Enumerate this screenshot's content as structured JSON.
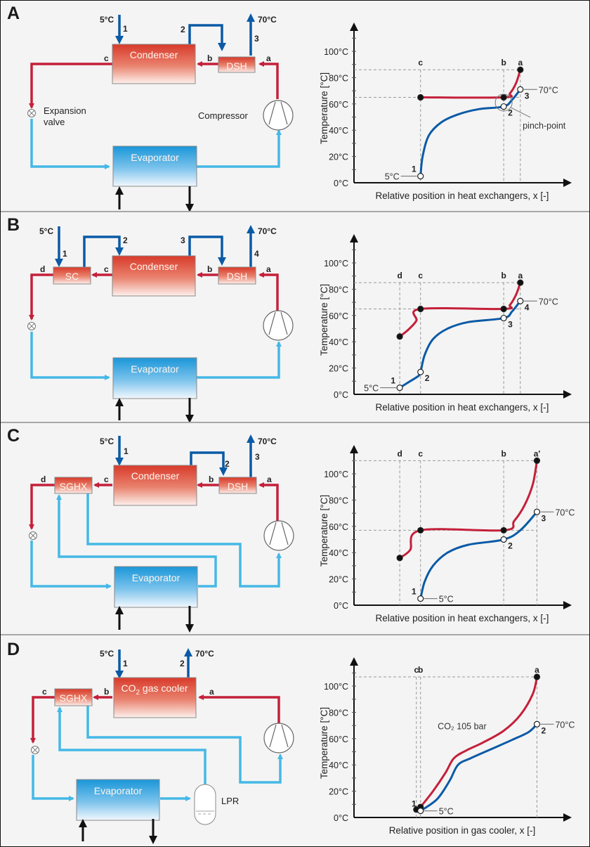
{
  "colors": {
    "hot_refrigerant": "#c4203a",
    "cold_refrigerant": "#45b8e6",
    "water": "#0a5aa6",
    "external": "#111111",
    "hx_red_top": "#d83a2a",
    "hx_red_bottom": "#fdf0ec",
    "evap_blue_top": "#1a96d8",
    "evap_blue_bottom": "#f2f8fd",
    "panel_bg": "#f4f4f4",
    "grid_dash": "#9a9a9a"
  },
  "panels": [
    {
      "id": "A",
      "letter": "A",
      "diagram": {
        "water_in_temp": "5°C",
        "water_out_temp": "70°C",
        "water_points": [
          "1",
          "2",
          "3"
        ],
        "refrigerant_points": [
          "a",
          "b",
          "c"
        ],
        "components": {
          "main_hx": "Condenser",
          "dsh": "DSH",
          "evaporator": "Evaporator",
          "expansion_valve": "Expansion\nvalve",
          "compressor": "Compressor"
        }
      },
      "chart_data": {
        "type": "line",
        "title": "",
        "xlabel": "Relative position in heat exchangers, x [-]",
        "ylabel": "Temperature [°C]",
        "ylim": [
          0,
          115
        ],
        "yticks": [
          "0°C",
          "20°C",
          "40°C",
          "60°C",
          "80°C",
          "100°C"
        ],
        "ytick_values": [
          0,
          20,
          40,
          60,
          80,
          100
        ],
        "grid": false,
        "xlim": [
          0,
          1
        ],
        "x_markers": [
          {
            "label": "c",
            "x": 0.32
          },
          {
            "label": "b",
            "x": 0.72
          },
          {
            "label": "a",
            "x": 0.8
          }
        ],
        "series": [
          {
            "name": "refrigerant",
            "color": "hot",
            "points": [
              [
                0.32,
                65
              ],
              [
                0.72,
                65
              ],
              [
                0.75,
                68
              ],
              [
                0.78,
                76
              ],
              [
                0.8,
                86
              ]
            ]
          },
          {
            "name": "water",
            "color": "water",
            "points": [
              [
                0.32,
                5
              ],
              [
                0.33,
                20
              ],
              [
                0.36,
                36
              ],
              [
                0.42,
                46
              ],
              [
                0.5,
                52
              ],
              [
                0.6,
                56
              ],
              [
                0.72,
                58
              ],
              [
                0.76,
                63
              ],
              [
                0.8,
                71
              ]
            ]
          }
        ],
        "points": [
          {
            "label": "a",
            "x": 0.8,
            "y": 86,
            "filled": true
          },
          {
            "label": "b",
            "x": 0.72,
            "y": 65,
            "filled": true
          },
          {
            "label": "c",
            "x": 0.32,
            "y": 65,
            "filled": true
          },
          {
            "label": "1",
            "x": 0.32,
            "y": 5,
            "filled": false
          },
          {
            "label": "2",
            "x": 0.72,
            "y": 58,
            "filled": false
          },
          {
            "label": "3",
            "x": 0.8,
            "y": 71,
            "filled": false
          }
        ],
        "h_guides": [
          86,
          65
        ],
        "annotations": [
          {
            "text": "5°C",
            "point": "1",
            "side": "left"
          },
          {
            "text": "70°C",
            "point": "3",
            "side": "right"
          },
          {
            "text": "pinch-point",
            "x": 0.72,
            "y": 61
          }
        ]
      }
    },
    {
      "id": "B",
      "letter": "B",
      "diagram": {
        "water_in_temp": "5°C",
        "water_out_temp": "70°C",
        "water_points": [
          "1",
          "2",
          "3",
          "4"
        ],
        "refrigerant_points": [
          "a",
          "b",
          "c",
          "d"
        ],
        "components": {
          "main_hx": "Condenser",
          "dsh": "DSH",
          "sc": "SC",
          "evaporator": "Evaporator"
        }
      },
      "chart_data": {
        "type": "line",
        "title": "",
        "xlabel": "Relative position in heat exchangers, x [-]",
        "ylabel": "Temperature [°C]",
        "ylim": [
          0,
          115
        ],
        "yticks": [
          "0°C",
          "20°C",
          "40°C",
          "60°C",
          "80°C",
          "100°C"
        ],
        "ytick_values": [
          0,
          20,
          40,
          60,
          80,
          100
        ],
        "grid": false,
        "xlim": [
          0,
          1
        ],
        "x_markers": [
          {
            "label": "d",
            "x": 0.22
          },
          {
            "label": "c",
            "x": 0.32
          },
          {
            "label": "b",
            "x": 0.72
          },
          {
            "label": "a",
            "x": 0.8
          }
        ],
        "series": [
          {
            "name": "refrigerant",
            "color": "hot",
            "points": [
              [
                0.22,
                44
              ],
              [
                0.26,
                49
              ],
              [
                0.3,
                56
              ],
              [
                0.32,
                65
              ],
              [
                0.72,
                65
              ],
              [
                0.75,
                68
              ],
              [
                0.78,
                76
              ],
              [
                0.8,
                85
              ]
            ]
          },
          {
            "name": "water",
            "color": "water",
            "points": [
              [
                0.22,
                5
              ],
              [
                0.26,
                9
              ],
              [
                0.31,
                14
              ],
              [
                0.32,
                17
              ],
              [
                0.34,
                30
              ],
              [
                0.38,
                42
              ],
              [
                0.45,
                50
              ],
              [
                0.55,
                55
              ],
              [
                0.72,
                58
              ],
              [
                0.76,
                63
              ],
              [
                0.8,
                71
              ]
            ]
          }
        ],
        "points": [
          {
            "label": "a",
            "x": 0.8,
            "y": 85,
            "filled": true
          },
          {
            "label": "b",
            "x": 0.72,
            "y": 65,
            "filled": true
          },
          {
            "label": "c",
            "x": 0.32,
            "y": 65,
            "filled": true
          },
          {
            "label": "d",
            "x": 0.22,
            "y": 44,
            "filled": true
          },
          {
            "label": "1",
            "x": 0.22,
            "y": 5,
            "filled": false
          },
          {
            "label": "2",
            "x": 0.32,
            "y": 17,
            "filled": false
          },
          {
            "label": "3",
            "x": 0.72,
            "y": 58,
            "filled": false
          },
          {
            "label": "4",
            "x": 0.8,
            "y": 71,
            "filled": false
          }
        ],
        "h_guides": [
          85,
          65
        ],
        "annotations": [
          {
            "text": "5°C",
            "point": "1",
            "side": "left"
          },
          {
            "text": "70°C",
            "point": "4",
            "side": "right"
          }
        ]
      }
    },
    {
      "id": "C",
      "letter": "C",
      "diagram": {
        "water_in_temp": "5°C",
        "water_out_temp": "70°C",
        "water_points": [
          "1",
          "2",
          "3"
        ],
        "refrigerant_points": [
          "a",
          "b",
          "c",
          "d"
        ],
        "components": {
          "main_hx": "Condenser",
          "dsh": "DSH",
          "sghx": "SGHX",
          "evaporator": "Evaporator"
        }
      },
      "chart_data": {
        "type": "line",
        "title": "",
        "xlabel": "Relative position in heat exchangers, x [-]",
        "ylabel": "Temperature [°C]",
        "ylim": [
          0,
          115
        ],
        "yticks": [
          "0°C",
          "20°C",
          "40°C",
          "60°C",
          "80°C",
          "100°C"
        ],
        "ytick_values": [
          0,
          20,
          40,
          60,
          80,
          100
        ],
        "grid": false,
        "xlim": [
          0,
          1
        ],
        "x_markers": [
          {
            "label": "d",
            "x": 0.22
          },
          {
            "label": "c",
            "x": 0.32
          },
          {
            "label": "b",
            "x": 0.72
          },
          {
            "label": "a'",
            "x": 0.88
          }
        ],
        "series": [
          {
            "name": "refrigerant",
            "color": "hot",
            "points": [
              [
                0.22,
                36
              ],
              [
                0.27,
                42
              ],
              [
                0.32,
                57
              ],
              [
                0.72,
                57
              ],
              [
                0.77,
                64
              ],
              [
                0.82,
                76
              ],
              [
                0.86,
                92
              ],
              [
                0.88,
                110
              ]
            ]
          },
          {
            "name": "water",
            "color": "water",
            "points": [
              [
                0.32,
                5
              ],
              [
                0.34,
                18
              ],
              [
                0.38,
                30
              ],
              [
                0.45,
                40
              ],
              [
                0.55,
                46
              ],
              [
                0.72,
                50
              ],
              [
                0.8,
                57
              ],
              [
                0.88,
                71
              ]
            ]
          }
        ],
        "points": [
          {
            "label": "a'",
            "x": 0.88,
            "y": 110,
            "filled": true
          },
          {
            "label": "b",
            "x": 0.72,
            "y": 57,
            "filled": true
          },
          {
            "label": "c",
            "x": 0.32,
            "y": 57,
            "filled": true
          },
          {
            "label": "d",
            "x": 0.22,
            "y": 36,
            "filled": true
          },
          {
            "label": "1",
            "x": 0.32,
            "y": 5,
            "filled": false
          },
          {
            "label": "2",
            "x": 0.72,
            "y": 50,
            "filled": false
          },
          {
            "label": "3",
            "x": 0.88,
            "y": 71,
            "filled": false
          }
        ],
        "h_guides": [
          110,
          57
        ],
        "annotations": [
          {
            "text": "5°C",
            "point": "1",
            "side": "right"
          },
          {
            "text": "70°C",
            "point": "3",
            "side": "right"
          }
        ]
      }
    },
    {
      "id": "D",
      "letter": "D",
      "diagram": {
        "water_in_temp": "5°C",
        "water_out_temp": "70°C",
        "water_points": [
          "1",
          "2"
        ],
        "refrigerant_points": [
          "a",
          "b",
          "c"
        ],
        "components": {
          "main_hx": "CO",
          "main_hx_sub": "2",
          "main_hx_suffix": " gas cooler",
          "sghx": "SGHX",
          "evaporator": "Evaporator",
          "lpr": "LPR"
        }
      },
      "chart_data": {
        "type": "line",
        "title": "",
        "xlabel": "Relative position in gas cooler, x [-]",
        "ylabel": "Temperature [°C]",
        "ylim": [
          0,
          115
        ],
        "yticks": [
          "0°C",
          "20°C",
          "40°C",
          "60°C",
          "80°C",
          "100°C"
        ],
        "ytick_values": [
          0,
          20,
          40,
          60,
          80,
          100
        ],
        "grid": false,
        "xlim": [
          0,
          1
        ],
        "x_markers": [
          {
            "label": "c",
            "x": 0.3
          },
          {
            "label": "b",
            "x": 0.32
          },
          {
            "label": "a",
            "x": 0.88
          }
        ],
        "series": [
          {
            "name": "refrigerant",
            "color": "hot",
            "points": [
              [
                0.32,
                8
              ],
              [
                0.38,
                20
              ],
              [
                0.44,
                34
              ],
              [
                0.48,
                45
              ],
              [
                0.54,
                51
              ],
              [
                0.62,
                57
              ],
              [
                0.72,
                66
              ],
              [
                0.8,
                78
              ],
              [
                0.86,
                94
              ],
              [
                0.88,
                107
              ]
            ]
          },
          {
            "name": "water",
            "color": "water",
            "points": [
              [
                0.32,
                5
              ],
              [
                0.4,
                14
              ],
              [
                0.46,
                28
              ],
              [
                0.5,
                40
              ],
              [
                0.56,
                45
              ],
              [
                0.66,
                52
              ],
              [
                0.76,
                59
              ],
              [
                0.84,
                65
              ],
              [
                0.88,
                71
              ]
            ]
          }
        ],
        "points": [
          {
            "label": "a",
            "x": 0.88,
            "y": 107,
            "filled": true
          },
          {
            "label": "b",
            "x": 0.32,
            "y": 8,
            "filled": true
          },
          {
            "label": "c",
            "x": 0.3,
            "y": 6,
            "filled": true
          },
          {
            "label": "1",
            "x": 0.32,
            "y": 5,
            "filled": false
          },
          {
            "label": "2",
            "x": 0.88,
            "y": 71,
            "filled": false
          }
        ],
        "h_guides": [
          107
        ],
        "annotations": [
          {
            "text": "5°C",
            "point": "1",
            "side": "right"
          },
          {
            "text": "70°C",
            "point": "2",
            "side": "right"
          },
          {
            "text": "CO₂ 105 bar",
            "x": 0.52,
            "y": 67
          }
        ]
      }
    }
  ]
}
